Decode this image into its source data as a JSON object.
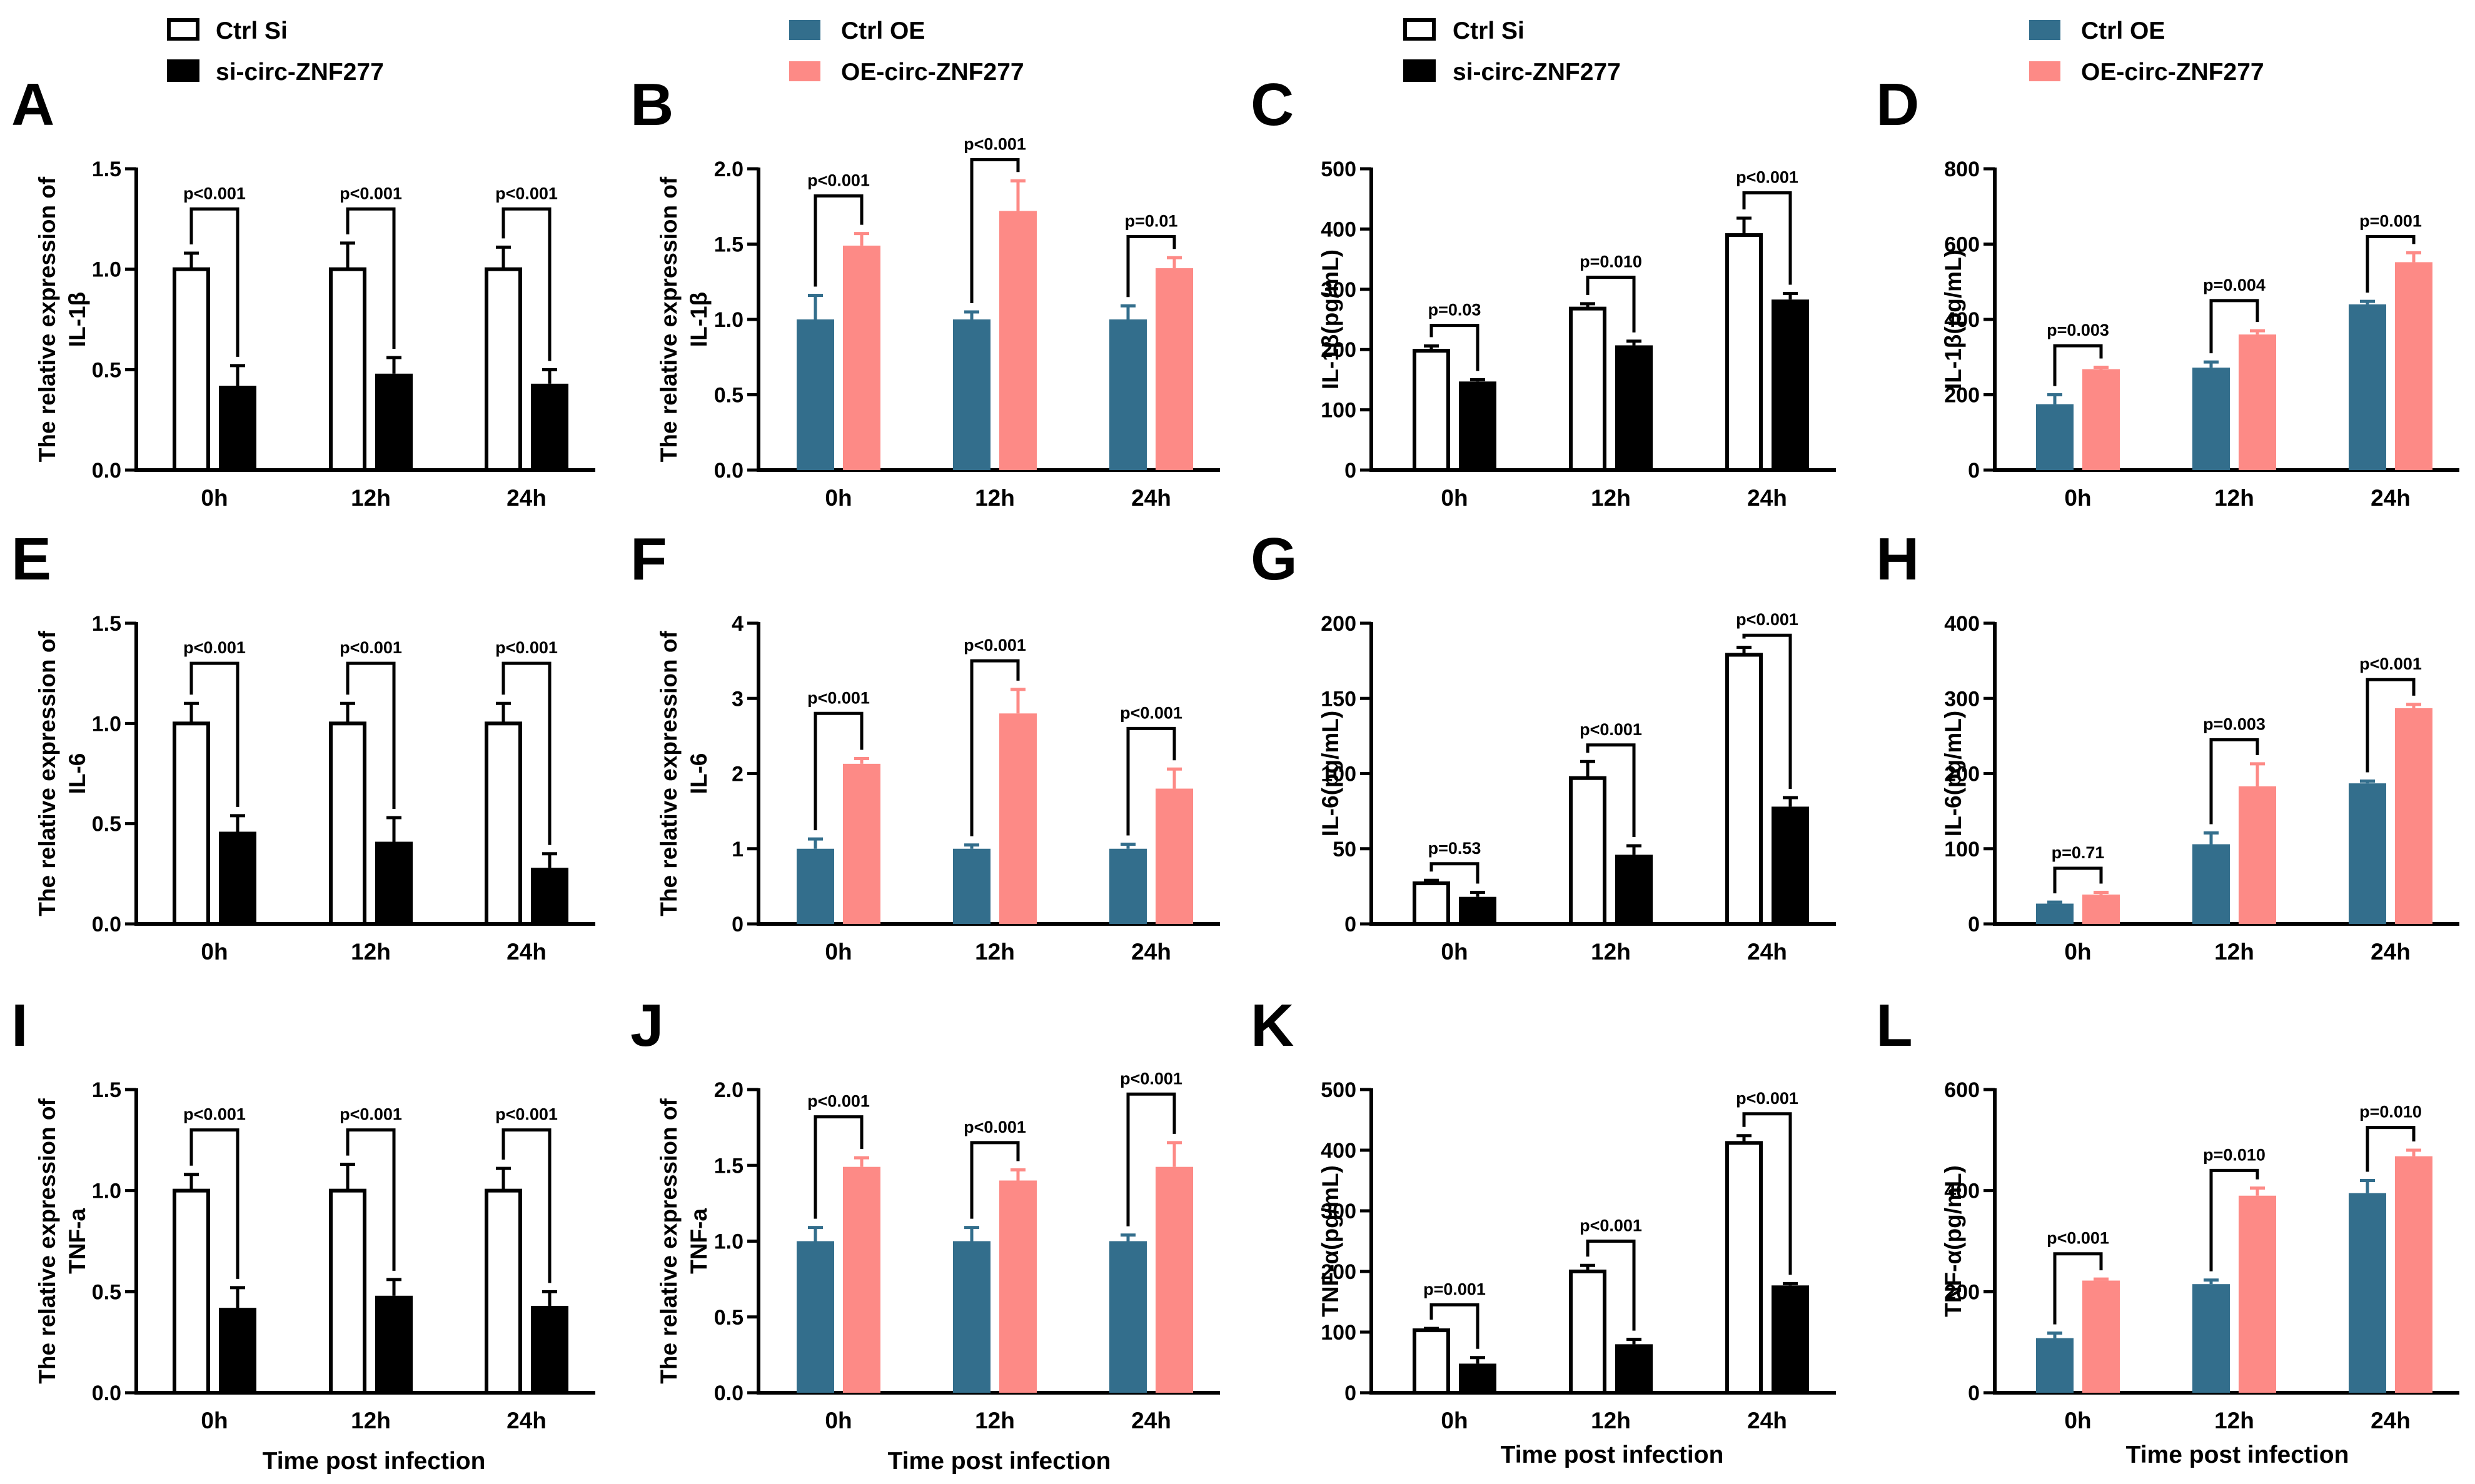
{
  "colors": {
    "ctrl_si_fill": "#ffffff",
    "si_fill": "#000000",
    "ctrl_oe_fill": "#336e8c",
    "oe_fill": "#fd8a86",
    "ctrl_oe_err": "#336e8c",
    "oe_err": "#fd8a86"
  },
  "legends": {
    "si": {
      "ctrl_label": "Ctrl Si",
      "treat_label": "si-circ-ZNF277"
    },
    "oe": {
      "ctrl_label": "Ctrl OE",
      "treat_label": "OE-circ-ZNF277"
    }
  },
  "x_title": "Time post infection",
  "chart_data": [
    {
      "panel": "A",
      "type": "bar",
      "group": "si",
      "ylabel_lines": [
        "The relative expression of",
        "IL-1β"
      ],
      "categories": [
        "0h",
        "12h",
        "24h"
      ],
      "ylim": [
        0,
        1.5
      ],
      "yticks": [
        "0.0",
        "0.5",
        "1.0",
        "1.5"
      ],
      "series": [
        {
          "name": "Ctrl Si",
          "values": [
            1.0,
            1.0,
            1.0
          ],
          "errors": [
            0.08,
            0.13,
            0.11
          ]
        },
        {
          "name": "si-circ-ZNF277",
          "values": [
            0.42,
            0.48,
            0.43
          ],
          "errors": [
            0.1,
            0.08,
            0.07
          ]
        }
      ],
      "pvalues": [
        "p<0.001",
        "p<0.001",
        "p<0.001"
      ],
      "bracket_y": [
        1.3,
        1.3,
        1.3
      ]
    },
    {
      "panel": "B",
      "type": "bar",
      "group": "oe",
      "ylabel_lines": [
        "The relative expression of",
        "IL-1β"
      ],
      "categories": [
        "0h",
        "12h",
        "24h"
      ],
      "ylim": [
        0,
        2.0
      ],
      "yticks": [
        "0.0",
        "0.5",
        "1.0",
        "1.5",
        "2.0"
      ],
      "series": [
        {
          "name": "Ctrl OE",
          "values": [
            1.0,
            1.0,
            1.0
          ],
          "errors": [
            0.16,
            0.05,
            0.09
          ]
        },
        {
          "name": "OE-circ-ZNF277",
          "values": [
            1.49,
            1.72,
            1.34
          ],
          "errors": [
            0.08,
            0.2,
            0.07
          ]
        }
      ],
      "pvalues": [
        "p<0.001",
        "p<0.001",
        "p=0.01"
      ],
      "bracket_y": [
        1.82,
        2.06,
        1.55
      ]
    },
    {
      "panel": "C",
      "type": "bar",
      "group": "si",
      "ylabel_lines": [
        "IL-1β(pg/mL)"
      ],
      "categories": [
        "0h",
        "12h",
        "24h"
      ],
      "ylim": [
        0,
        500
      ],
      "yticks": [
        "0",
        "100",
        "200",
        "300",
        "400",
        "500"
      ],
      "series": [
        {
          "name": "Ctrl Si",
          "values": [
            198,
            268,
            390
          ],
          "errors": [
            8,
            8,
            28
          ]
        },
        {
          "name": "si-circ-ZNF277",
          "values": [
            147,
            207,
            283
          ],
          "errors": [
            3,
            7,
            10
          ]
        }
      ],
      "pvalues": [
        "p=0.03",
        "p=0.010",
        "p<0.001"
      ],
      "bracket_y": [
        240,
        320,
        460
      ]
    },
    {
      "panel": "D",
      "type": "bar",
      "group": "oe",
      "ylabel_lines": [
        "IL-1β(pg/mL)"
      ],
      "categories": [
        "0h",
        "12h",
        "24h"
      ],
      "ylim": [
        0,
        800
      ],
      "yticks": [
        "0",
        "200",
        "400",
        "600",
        "800"
      ],
      "series": [
        {
          "name": "Ctrl OE",
          "values": [
            175,
            272,
            440
          ],
          "errors": [
            25,
            15,
            8
          ]
        },
        {
          "name": "OE-circ-ZNF277",
          "values": [
            268,
            360,
            552
          ],
          "errors": [
            5,
            10,
            25
          ]
        }
      ],
      "pvalues": [
        "p=0.003",
        "p=0.004",
        "p=0.001"
      ],
      "bracket_y": [
        330,
        450,
        620
      ]
    },
    {
      "panel": "E",
      "type": "bar",
      "group": "si",
      "ylabel_lines": [
        "The relative expression of",
        "IL-6"
      ],
      "categories": [
        "0h",
        "12h",
        "24h"
      ],
      "ylim": [
        0,
        1.5
      ],
      "yticks": [
        "0.0",
        "0.5",
        "1.0",
        "1.5"
      ],
      "series": [
        {
          "name": "Ctrl Si",
          "values": [
            1.0,
            1.0,
            1.0
          ],
          "errors": [
            0.1,
            0.1,
            0.1
          ]
        },
        {
          "name": "si-circ-ZNF277",
          "values": [
            0.46,
            0.41,
            0.28
          ],
          "errors": [
            0.08,
            0.12,
            0.07
          ]
        }
      ],
      "pvalues": [
        "p<0.001",
        "p<0.001",
        "p<0.001"
      ],
      "bracket_y": [
        1.3,
        1.3,
        1.3
      ]
    },
    {
      "panel": "F",
      "type": "bar",
      "group": "oe",
      "ylabel_lines": [
        "The relative expression of",
        "IL-6"
      ],
      "categories": [
        "0h",
        "12h",
        "24h"
      ],
      "ylim": [
        0,
        4
      ],
      "yticks": [
        "0",
        "1",
        "2",
        "3",
        "4"
      ],
      "series": [
        {
          "name": "Ctrl OE",
          "values": [
            1.0,
            1.0,
            1.0
          ],
          "errors": [
            0.13,
            0.05,
            0.06
          ]
        },
        {
          "name": "OE-circ-ZNF277",
          "values": [
            2.13,
            2.8,
            1.8
          ],
          "errors": [
            0.07,
            0.32,
            0.26
          ]
        }
      ],
      "pvalues": [
        "p<0.001",
        "p<0.001",
        "p<0.001"
      ],
      "bracket_y": [
        2.8,
        3.5,
        2.6
      ]
    },
    {
      "panel": "G",
      "type": "bar",
      "group": "si",
      "ylabel_lines": [
        "IL-6(pg/mL)"
      ],
      "categories": [
        "0h",
        "12h",
        "24h"
      ],
      "ylim": [
        0,
        200
      ],
      "yticks": [
        "0",
        "50",
        "100",
        "150",
        "200"
      ],
      "series": [
        {
          "name": "Ctrl Si",
          "values": [
            27,
            97,
            179
          ],
          "errors": [
            2,
            11,
            5
          ]
        },
        {
          "name": "si-circ-ZNF277",
          "values": [
            18,
            46,
            78
          ],
          "errors": [
            3,
            6,
            6
          ]
        }
      ],
      "pvalues": [
        "p=0.53",
        "p<0.001",
        "p<0.001"
      ],
      "bracket_y": [
        40,
        119,
        192
      ]
    },
    {
      "panel": "H",
      "type": "bar",
      "group": "oe",
      "ylabel_lines": [
        "IL-6(pg/mL)"
      ],
      "categories": [
        "0h",
        "12h",
        "24h"
      ],
      "ylim": [
        0,
        400
      ],
      "yticks": [
        "0",
        "100",
        "200",
        "300",
        "400"
      ],
      "series": [
        {
          "name": "Ctrl OE",
          "values": [
            27,
            106,
            187
          ],
          "errors": [
            2,
            15,
            3
          ]
        },
        {
          "name": "OE-circ-ZNF277",
          "values": [
            39,
            183,
            287
          ],
          "errors": [
            3,
            30,
            5
          ]
        }
      ],
      "pvalues": [
        "p=0.71",
        "p=0.003",
        "p<0.001"
      ],
      "bracket_y": [
        74,
        245,
        325
      ]
    },
    {
      "panel": "I",
      "type": "bar",
      "group": "si",
      "ylabel_lines": [
        "The relative expression of",
        "TNF-a"
      ],
      "categories": [
        "0h",
        "12h",
        "24h"
      ],
      "ylim": [
        0,
        1.5
      ],
      "yticks": [
        "0.0",
        "0.5",
        "1.0",
        "1.5"
      ],
      "series": [
        {
          "name": "Ctrl Si",
          "values": [
            1.0,
            1.0,
            1.0
          ],
          "errors": [
            0.08,
            0.13,
            0.11
          ]
        },
        {
          "name": "si-circ-ZNF277",
          "values": [
            0.42,
            0.48,
            0.43
          ],
          "errors": [
            0.1,
            0.08,
            0.07
          ]
        }
      ],
      "pvalues": [
        "p<0.001",
        "p<0.001",
        "p<0.001"
      ],
      "bracket_y": [
        1.3,
        1.3,
        1.3
      ]
    },
    {
      "panel": "J",
      "type": "bar",
      "group": "oe",
      "ylabel_lines": [
        "The relative expression of",
        "TNF-a"
      ],
      "categories": [
        "0h",
        "12h",
        "24h"
      ],
      "ylim": [
        0,
        2.0
      ],
      "yticks": [
        "0.0",
        "0.5",
        "1.0",
        "1.5",
        "2.0"
      ],
      "series": [
        {
          "name": "Ctrl OE",
          "values": [
            1.0,
            1.0,
            1.0
          ],
          "errors": [
            0.09,
            0.09,
            0.04
          ]
        },
        {
          "name": "OE-circ-ZNF277",
          "values": [
            1.49,
            1.4,
            1.49
          ],
          "errors": [
            0.06,
            0.07,
            0.16
          ]
        }
      ],
      "pvalues": [
        "p<0.001",
        "p<0.001",
        "p<0.001"
      ],
      "bracket_y": [
        1.82,
        1.65,
        1.97
      ]
    },
    {
      "panel": "K",
      "type": "bar",
      "group": "si",
      "ylabel_lines": [
        "TNF-α(pg/mL)"
      ],
      "categories": [
        "0h",
        "12h",
        "24h"
      ],
      "ylim": [
        0,
        500
      ],
      "yticks": [
        "0",
        "100",
        "200",
        "300",
        "400",
        "500"
      ],
      "series": [
        {
          "name": "Ctrl Si",
          "values": [
            103,
            200,
            412
          ],
          "errors": [
            3,
            10,
            12
          ]
        },
        {
          "name": "si-circ-ZNF277",
          "values": [
            48,
            80,
            177
          ],
          "errors": [
            10,
            8,
            3
          ]
        }
      ],
      "pvalues": [
        "p=0.001",
        "p<0.001",
        "p<0.001"
      ],
      "bracket_y": [
        145,
        250,
        460
      ]
    },
    {
      "panel": "L",
      "type": "bar",
      "group": "oe",
      "ylabel_lines": [
        "TNF-α(pg/mL)"
      ],
      "categories": [
        "0h",
        "12h",
        "24h"
      ],
      "ylim": [
        0,
        600
      ],
      "yticks": [
        "0",
        "200",
        "400",
        "600"
      ],
      "series": [
        {
          "name": "Ctrl OE",
          "values": [
            108,
            215,
            395
          ],
          "errors": [
            10,
            8,
            25
          ]
        },
        {
          "name": "OE-circ-ZNF277",
          "values": [
            222,
            390,
            468
          ],
          "errors": [
            3,
            15,
            12
          ]
        }
      ],
      "pvalues": [
        "p<0.001",
        "p=0.010",
        "p=0.010"
      ],
      "bracket_y": [
        275,
        440,
        525
      ]
    }
  ]
}
